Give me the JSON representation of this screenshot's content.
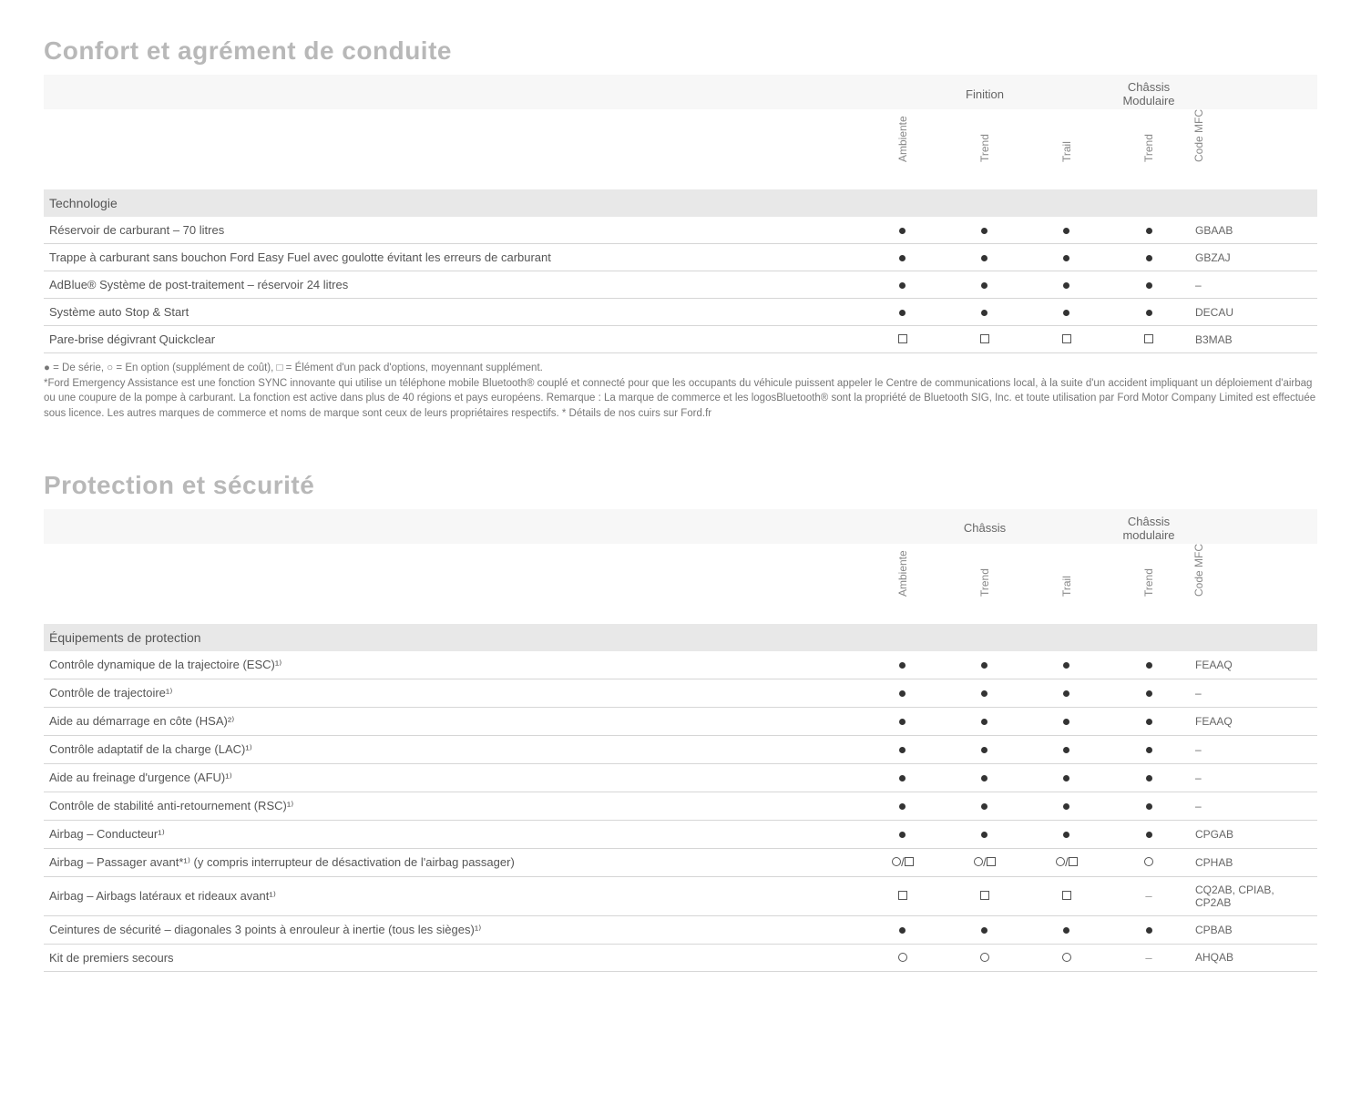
{
  "symbols": {
    "dot": "●",
    "ring": "○",
    "sq": "□",
    "dash": "–"
  },
  "legend": "● = De série, ○ = En option (supplément de coût), □ = Élément d'un pack d'options, moyennant supplément.",
  "footnote": "*Ford Emergency Assistance est une fonction SYNC innovante qui utilise un téléphone mobile Bluetooth® couplé et connecté pour que les occupants du véhicule puissent appeler le Centre de communications local, à la suite d'un accident impliquant un déploiement d'airbag ou une coupure de la pompe à carburant. La fonction est active dans plus de 40 régions et pays européens. Remarque : La marque de commerce et les logosBluetooth® sont la propriété de Bluetooth SIG, Inc. et toute utilisation par Ford Motor Company Limited est effectuée sous licence. Les autres marques de commerce et noms de marque sont ceux de leurs propriétaires respectifs. * Détails de nos cuirs sur Ford.fr",
  "tables": [
    {
      "title": "Confort et agrément de conduite",
      "group_left": "Finition",
      "group_right": "Châssis Modulaire",
      "columns": [
        "Ambiente",
        "Trend",
        "Trail",
        "Trend",
        "Code MFC"
      ],
      "col_kinds": [
        "c",
        "c",
        "c",
        "c",
        "code"
      ],
      "section": "Technologie",
      "rows": [
        {
          "feat": "Réservoir de carburant – 70 litres",
          "cells": [
            "dot",
            "dot",
            "dot",
            "dot"
          ],
          "code": "GBAAB"
        },
        {
          "feat": "Trappe à carburant sans bouchon Ford Easy Fuel avec goulotte évitant les erreurs de carburant",
          "cells": [
            "dot",
            "dot",
            "dot",
            "dot"
          ],
          "code": "GBZAJ"
        },
        {
          "feat": "AdBlue® Système de post-traitement – réservoir 24 litres",
          "cells": [
            "dot",
            "dot",
            "dot",
            "dot"
          ],
          "code": "–"
        },
        {
          "feat": "Système auto Stop & Start",
          "cells": [
            "dot",
            "dot",
            "dot",
            "dot"
          ],
          "code": "DECAU"
        },
        {
          "feat": "Pare-brise dégivrant Quickclear",
          "cells": [
            "sq",
            "sq",
            "sq",
            "sq"
          ],
          "code": "B3MAB"
        }
      ]
    },
    {
      "title": "Protection et sécurité",
      "group_left": "Châssis",
      "group_right": "Châssis modulaire",
      "columns": [
        "Ambiente",
        "Trend",
        "Trail",
        "Trend",
        "Code MFC"
      ],
      "col_kinds": [
        "c",
        "c",
        "c",
        "c",
        "code"
      ],
      "section": "Équipements de protection",
      "rows": [
        {
          "feat": "Contrôle dynamique de la trajectoire (ESC)¹⁾",
          "cells": [
            "dot",
            "dot",
            "dot",
            "dot"
          ],
          "code": "FEAAQ"
        },
        {
          "feat": "Contrôle de trajectoire¹⁾",
          "cells": [
            "dot",
            "dot",
            "dot",
            "dot"
          ],
          "code": "–"
        },
        {
          "feat": "Aide au démarrage en côte (HSA)²⁾",
          "cells": [
            "dot",
            "dot",
            "dot",
            "dot"
          ],
          "code": "FEAAQ"
        },
        {
          "feat": "Contrôle adaptatif de la charge (LAC)¹⁾",
          "cells": [
            "dot",
            "dot",
            "dot",
            "dot"
          ],
          "code": "–"
        },
        {
          "feat": "Aide au freinage d'urgence (AFU)¹⁾",
          "cells": [
            "dot",
            "dot",
            "dot",
            "dot"
          ],
          "code": "–"
        },
        {
          "feat": "Contrôle de stabilité anti-retournement (RSC)¹⁾",
          "cells": [
            "dot",
            "dot",
            "dot",
            "dot"
          ],
          "code": "–"
        },
        {
          "feat": "Airbag – Conducteur¹⁾",
          "cells": [
            "dot",
            "dot",
            "dot",
            "dot"
          ],
          "code": "CPGAB"
        },
        {
          "feat": "Airbag – Passager avant*¹⁾ (y compris interrupteur de désactivation de l'airbag passager)",
          "cells": [
            "ring_sq",
            "ring_sq",
            "ring_sq",
            "ring"
          ],
          "code": "CPHAB"
        },
        {
          "feat": "Airbag – Airbags latéraux et rideaux avant¹⁾",
          "cells": [
            "sq",
            "sq",
            "sq",
            "dash"
          ],
          "code": "CQ2AB, CPIAB, CP2AB"
        },
        {
          "feat": "Ceintures de sécurité – diagonales 3 points à enrouleur à inertie (tous les sièges)¹⁾",
          "cells": [
            "dot",
            "dot",
            "dot",
            "dot"
          ],
          "code": "CPBAB"
        },
        {
          "feat": "Kit de premiers secours",
          "cells": [
            "ring",
            "ring",
            "ring",
            "dash"
          ],
          "code": "AHQAB"
        }
      ]
    }
  ]
}
